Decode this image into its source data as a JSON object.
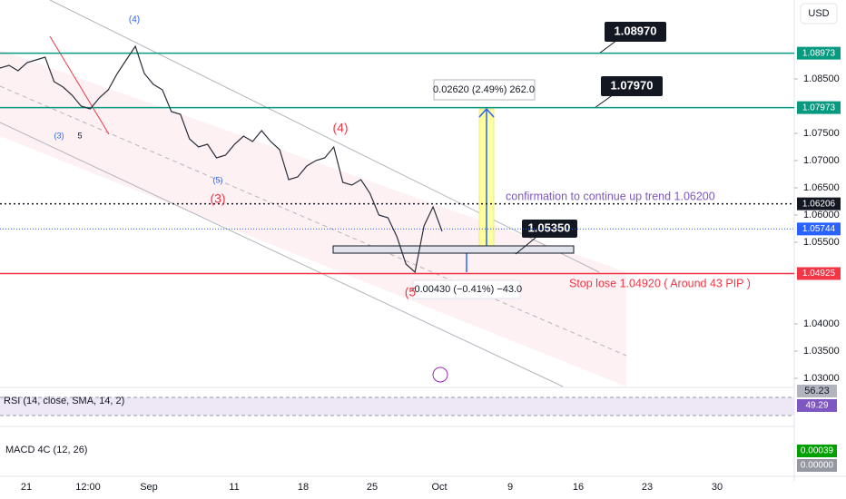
{
  "chart_data": {
    "type": "line",
    "currency": "USD",
    "color": "#2a2e39",
    "values": [
      1.087,
      1.0875,
      1.0865,
      1.088,
      1.0885,
      1.089,
      1.0845,
      1.0835,
      1.082,
      1.08,
      1.0795,
      1.0815,
      1.083,
      1.086,
      1.0885,
      1.091,
      1.086,
      1.084,
      1.083,
      1.079,
      1.0785,
      1.074,
      1.0725,
      1.073,
      1.0705,
      1.071,
      1.073,
      1.0745,
      1.0735,
      1.0755,
      1.0735,
      1.072,
      1.0665,
      1.067,
      1.069,
      1.07,
      1.0705,
      1.0725,
      1.066,
      1.0655,
      1.0665,
      1.064,
      1.06,
      1.0595,
      1.056,
      1.051,
      1.0495,
      1.058,
      1.0615,
      1.057
    ],
    "ylim": [
      1.0285,
      1.0995
    ],
    "yticks": [
      {
        "value": 1.03,
        "label": "1.03000"
      },
      {
        "value": 1.035,
        "label": "1.03500"
      },
      {
        "value": 1.04,
        "label": "1.04000"
      },
      {
        "value": 1.055,
        "label": "1.05500"
      },
      {
        "value": 1.06,
        "label": "1.06000"
      },
      {
        "value": 1.065,
        "label": "1.06500"
      },
      {
        "value": 1.07,
        "label": "1.07000"
      },
      {
        "value": 1.075,
        "label": "1.07500"
      },
      {
        "value": 1.085,
        "label": "1.08500"
      }
    ],
    "xticks": [
      "21",
      "12:00",
      "Sep",
      "11",
      "18",
      "25",
      "Oct",
      "9",
      "16",
      "23",
      "30"
    ],
    "levels": [
      {
        "value": 1.08973,
        "label": "1.08973",
        "color": "#089981"
      },
      {
        "value": 1.07973,
        "label": "1.07973",
        "color": "#089981"
      },
      {
        "value": 1.06206,
        "label": "1.06206",
        "color": "#131722"
      },
      {
        "value": 1.05744,
        "label": "1.05744",
        "color": "#2962ff"
      },
      {
        "value": 1.04925,
        "label": "1.04925",
        "color": "#f23645"
      }
    ],
    "callouts": [
      "1.08970",
      "1.07970",
      "1.05350"
    ],
    "measure_up": "0.02620 (2.49%) 262.0",
    "measure_down": "-0.00430 (−0.41%) −43.0",
    "confirmation": "confirmation to continue up trend 1.06200",
    "stop_loss": "Stop lose 1.04920 ( Around 43 PIP )",
    "waves": [
      "(4)",
      "(3)",
      "5",
      "(5)",
      "(3)",
      "(4)",
      "(5"
    ],
    "rsi": {
      "title": "RSI (14, close, SMA, 14, 2)",
      "tags": [
        "56.23",
        "49.29"
      ]
    },
    "macd": {
      "title": "MACD 4C (12, 26)",
      "tags": [
        "0.00039",
        "0.00000"
      ]
    }
  }
}
